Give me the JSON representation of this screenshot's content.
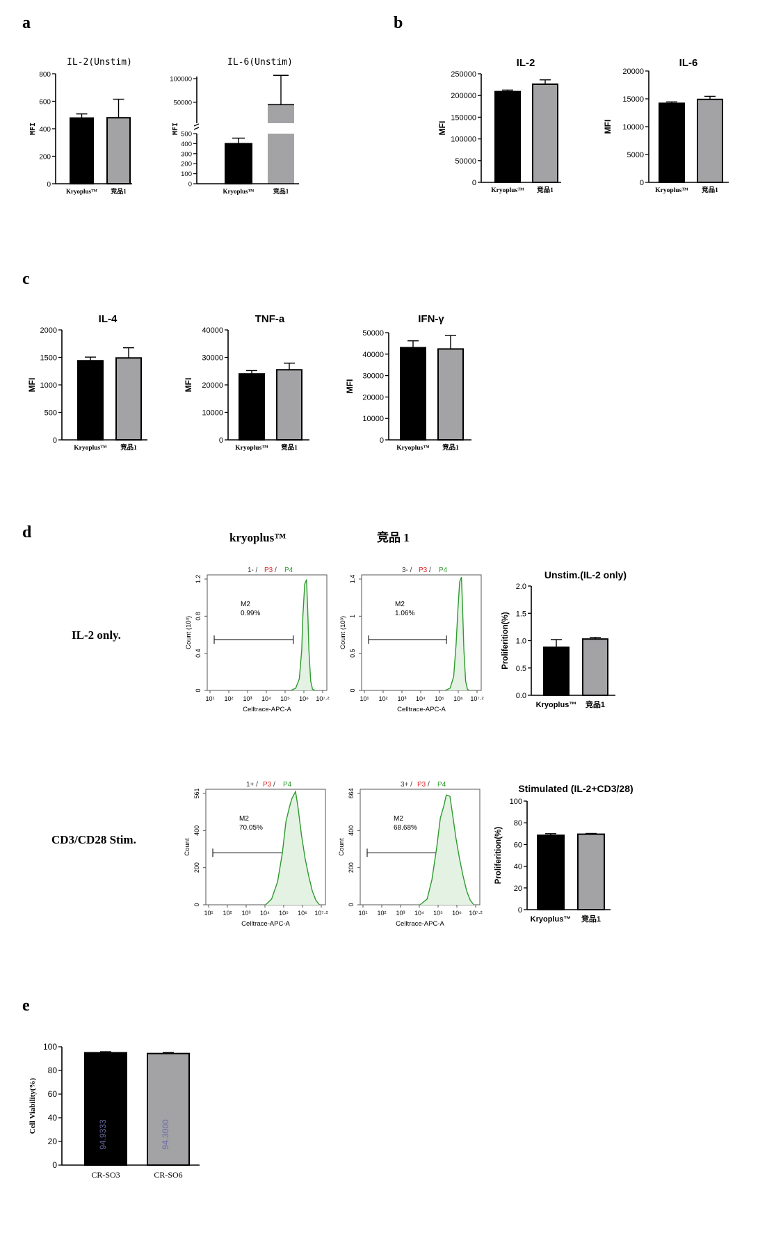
{
  "panels": {
    "a": {
      "letter": "a",
      "charts": [
        {
          "title": "IL-2(Unstim)",
          "ylabel": "MFI",
          "categories": [
            "Kryoplus™",
            "竞品1"
          ],
          "yticks": [
            "0",
            "200",
            "400",
            "600",
            "800"
          ]
        },
        {
          "title": "IL-6(Unstim)",
          "ylabel": "MFI",
          "categories": [
            "Kryoplus™",
            "竞品1"
          ],
          "yticks_lower": [
            "0",
            "100",
            "200",
            "300",
            "400",
            "500"
          ],
          "yticks_upper": [
            "50000",
            "100000"
          ]
        }
      ]
    },
    "b": {
      "letter": "b",
      "charts": [
        {
          "title": "IL-2",
          "ylabel": "MFI",
          "categories": [
            "Kryoplus™",
            "竞品1"
          ],
          "yticks": [
            "0",
            "50000",
            "100000",
            "150000",
            "200000",
            "250000"
          ]
        },
        {
          "title": "IL-6",
          "ylabel": "MFI",
          "categories": [
            "Kryoplus™",
            "竞品1"
          ],
          "yticks": [
            "0",
            "5000",
            "10000",
            "15000",
            "20000"
          ]
        }
      ]
    },
    "c": {
      "letter": "c",
      "charts": [
        {
          "title": "IL-4",
          "ylabel": "MFI",
          "categories": [
            "Kryoplus™",
            "竞品1"
          ],
          "yticks": [
            "0",
            "500",
            "1000",
            "1500",
            "2000"
          ]
        },
        {
          "title": "TNF-a",
          "ylabel": "MFI",
          "categories": [
            "Kryoplus™",
            "竞品1"
          ],
          "yticks": [
            "0",
            "10000",
            "20000",
            "30000",
            "40000"
          ]
        },
        {
          "title": "IFN-γ",
          "ylabel": "MFI",
          "categories": [
            "Kryoplus™",
            "竞品1"
          ],
          "yticks": [
            "0",
            "10000",
            "20000",
            "30000",
            "40000",
            "50000"
          ]
        }
      ]
    },
    "d": {
      "letter": "d",
      "col_headers": [
        "kryoplus™",
        "竞品 1"
      ],
      "row_labels": [
        "IL-2 only.",
        "CD3/CD28 Stim."
      ],
      "histograms": [
        {
          "header_parts": [
            "1- / ",
            "P3",
            " / ",
            "P4"
          ],
          "gate": "M2",
          "pct": "0.99%",
          "ylabel": "Count (10³)",
          "yticks": [
            "0",
            "0.4",
            "0.8",
            "1.2"
          ],
          "xlabel": "Celltrace-APC-A"
        },
        {
          "header_parts": [
            "3- / ",
            "P3",
            " / ",
            "P4"
          ],
          "gate": "M2",
          "pct": "1.06%",
          "ylabel": "Count (10³)",
          "yticks": [
            "0",
            "0.5",
            "1",
            "1.4"
          ],
          "xlabel": "Celltrace-APC-A"
        },
        {
          "header_parts": [
            "1+ / ",
            "P3",
            " / ",
            "P4"
          ],
          "gate": "M2",
          "pct": "70.05%",
          "ylabel": "Count",
          "yticks": [
            "0",
            "200",
            "400",
            "561"
          ],
          "xlabel": "Celltrace-APC-A"
        },
        {
          "header_parts": [
            "3+ / ",
            "P3",
            " / ",
            "P4"
          ],
          "gate": "M2",
          "pct": "68.68%",
          "ylabel": "Count",
          "yticks": [
            "0",
            "200",
            "400",
            "664"
          ],
          "xlabel": "Celltrace-APC-A"
        }
      ],
      "xticks": [
        "10¹",
        "10²",
        "10³",
        "10⁴",
        "10⁵",
        "10⁶",
        "10⁷·²"
      ],
      "bar_charts": [
        {
          "title": "Unstim.(IL-2 only)",
          "ylabel": "Proliferition(%)",
          "categories": [
            "Kryoplus™",
            "竞品1"
          ],
          "yticks": [
            "0.0",
            "0.5",
            "1.0",
            "1.5",
            "2.0"
          ]
        },
        {
          "title": "Stimulated (IL-2+CD3/28)",
          "ylabel": "Proliferition(%)",
          "categories": [
            "Kryoplus™",
            "竞品1"
          ],
          "yticks": [
            "0",
            "20",
            "40",
            "60",
            "80",
            "100"
          ]
        }
      ]
    },
    "e": {
      "letter": "e",
      "ylabel": "Cell Viability(%)",
      "categories": [
        "CR-SO3",
        "CR-SO6"
      ],
      "yticks": [
        "0",
        "20",
        "40",
        "60",
        "80",
        "100"
      ],
      "bar_labels": [
        "94.9333",
        "94.3000"
      ]
    }
  },
  "colors": {
    "kryoplus_bar": "#000000",
    "competitor_bar": "#a3a3a6",
    "gate_green": "#2e9a2e",
    "fill_green": "#e3f2e3",
    "p3_red": "#e02020",
    "p4_green": "#2a9a2a",
    "bar_label": "#6a6aa8"
  },
  "chart_data": [
    {
      "type": "bar",
      "panel": "a",
      "title": "IL-2(Unstim)",
      "ylabel": "MFI",
      "categories": [
        "Kryoplus™",
        "竞品1"
      ],
      "values": [
        478,
        480
      ],
      "errors": [
        30,
        135
      ],
      "ylim": [
        0,
        800
      ]
    },
    {
      "type": "bar",
      "panel": "a",
      "title": "IL-6(Unstim)",
      "ylabel": "MFI",
      "categories": [
        "Kryoplus™",
        "竞品1"
      ],
      "values": [
        400,
        45000
      ],
      "errors": [
        55,
        62000
      ],
      "broken_axis": {
        "lower": [
          0,
          500
        ],
        "upper": [
          50000,
          100000
        ]
      }
    },
    {
      "type": "bar",
      "panel": "b",
      "title": "IL-2",
      "ylabel": "MFI",
      "categories": [
        "Kryoplus™",
        "竞品1"
      ],
      "values": [
        209000,
        226000
      ],
      "errors": [
        3500,
        10000
      ],
      "ylim": [
        0,
        250000
      ]
    },
    {
      "type": "bar",
      "panel": "b",
      "title": "IL-6",
      "ylabel": "MFI",
      "categories": [
        "Kryoplus™",
        "竞品1"
      ],
      "values": [
        14200,
        14900
      ],
      "errors": [
        250,
        550
      ],
      "ylim": [
        0,
        20000
      ]
    },
    {
      "type": "bar",
      "panel": "c",
      "title": "IL-4",
      "ylabel": "MFI",
      "categories": [
        "Kryoplus™",
        "竞品1"
      ],
      "values": [
        1440,
        1490
      ],
      "errors": [
        65,
        185
      ],
      "ylim": [
        0,
        2000
      ]
    },
    {
      "type": "bar",
      "panel": "c",
      "title": "TNF-a",
      "ylabel": "MFI",
      "categories": [
        "Kryoplus™",
        "竞品1"
      ],
      "values": [
        24000,
        25500
      ],
      "errors": [
        1200,
        2400
      ],
      "ylim": [
        0,
        40000
      ]
    },
    {
      "type": "bar",
      "panel": "c",
      "title": "IFN-γ",
      "ylabel": "MFI",
      "categories": [
        "Kryoplus™",
        "竞品1"
      ],
      "values": [
        43000,
        42400
      ],
      "errors": [
        3200,
        6300
      ],
      "ylim": [
        0,
        50000
      ]
    },
    {
      "type": "bar",
      "panel": "d",
      "title": "Unstim.(IL-2 only)",
      "ylabel": "Proliferition(%)",
      "categories": [
        "Kryoplus™",
        "竞品1"
      ],
      "values": [
        0.88,
        1.03
      ],
      "errors": [
        0.14,
        0.03
      ],
      "ylim": [
        0,
        2.0
      ]
    },
    {
      "type": "bar",
      "panel": "d",
      "title": "Stimulated (IL-2+CD3/28)",
      "ylabel": "Proliferition(%)",
      "categories": [
        "Kryoplus™",
        "竞品1"
      ],
      "values": [
        68.5,
        69.5
      ],
      "errors": [
        1.5,
        0.7
      ],
      "ylim": [
        0,
        100
      ]
    },
    {
      "type": "bar",
      "panel": "e",
      "title": "",
      "ylabel": "Cell Viability(%)",
      "categories": [
        "CR-SO3",
        "CR-SO6"
      ],
      "values": [
        94.9333,
        94.3
      ],
      "errors": [
        0.9,
        0.8
      ],
      "ylim": [
        0,
        100
      ]
    }
  ]
}
